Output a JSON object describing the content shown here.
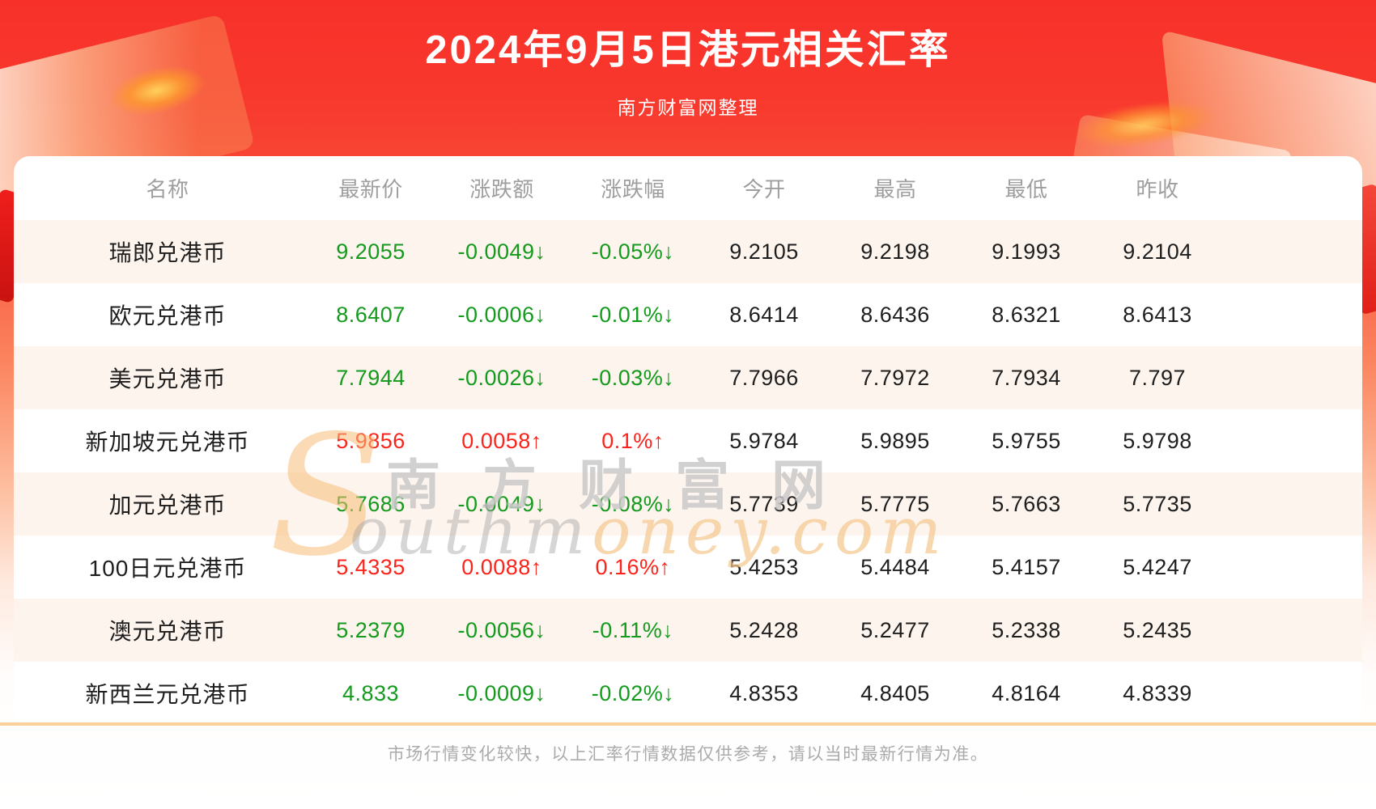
{
  "header": {
    "title": "2024年9月5日港元相关汇率",
    "subtitle": "南方财富网整理"
  },
  "chart_data": {
    "type": "table",
    "title": "2024年9月5日港元相关汇率",
    "columns": [
      "名称",
      "最新价",
      "涨跌额",
      "涨跌幅",
      "今开",
      "最高",
      "最低",
      "昨收"
    ],
    "rows": [
      {
        "name": "瑞郎兑港币",
        "latest": "9.2055",
        "change": "-0.0049↓",
        "change_pct": "-0.05%↓",
        "open": "9.2105",
        "high": "9.2198",
        "low": "9.1993",
        "prev_close": "9.2104",
        "trend": "down"
      },
      {
        "name": "欧元兑港币",
        "latest": "8.6407",
        "change": "-0.0006↓",
        "change_pct": "-0.01%↓",
        "open": "8.6414",
        "high": "8.6436",
        "low": "8.6321",
        "prev_close": "8.6413",
        "trend": "down"
      },
      {
        "name": "美元兑港币",
        "latest": "7.7944",
        "change": "-0.0026↓",
        "change_pct": "-0.03%↓",
        "open": "7.7966",
        "high": "7.7972",
        "low": "7.7934",
        "prev_close": "7.797",
        "trend": "down"
      },
      {
        "name": "新加坡元兑港币",
        "latest": "5.9856",
        "change": "0.0058↑",
        "change_pct": "0.1%↑",
        "open": "5.9784",
        "high": "5.9895",
        "low": "5.9755",
        "prev_close": "5.9798",
        "trend": "up"
      },
      {
        "name": "加元兑港币",
        "latest": "5.7686",
        "change": "-0.0049↓",
        "change_pct": "-0.08%↓",
        "open": "5.7739",
        "high": "5.7775",
        "low": "5.7663",
        "prev_close": "5.7735",
        "trend": "down"
      },
      {
        "name": "100日元兑港币",
        "latest": "5.4335",
        "change": "0.0088↑",
        "change_pct": "0.16%↑",
        "open": "5.4253",
        "high": "5.4484",
        "low": "5.4157",
        "prev_close": "5.4247",
        "trend": "up"
      },
      {
        "name": "澳元兑港币",
        "latest": "5.2379",
        "change": "-0.0056↓",
        "change_pct": "-0.11%↓",
        "open": "5.2428",
        "high": "5.2477",
        "low": "5.2338",
        "prev_close": "5.2435",
        "trend": "down"
      },
      {
        "name": "新西兰元兑港币",
        "latest": "4.833",
        "change": "-0.0009↓",
        "change_pct": "-0.02%↓",
        "open": "4.8353",
        "high": "4.8405",
        "low": "4.8164",
        "prev_close": "4.8339",
        "trend": "down"
      }
    ]
  },
  "watermark": {
    "cjk": "南方财富网",
    "latin_initial": "S",
    "latin_gray": "outhm",
    "latin_orange": "oney.com"
  },
  "footer": {
    "note": "市场行情变化较快，以上汇率行情数据仅供参考，请以当时最新行情为准。"
  },
  "colors": {
    "up_red": "#fb241b",
    "down_green": "#149a1d",
    "banner_red": "#f7312a",
    "row_tint": "#fdf4ed",
    "divider_orange": "#fbd09b"
  }
}
